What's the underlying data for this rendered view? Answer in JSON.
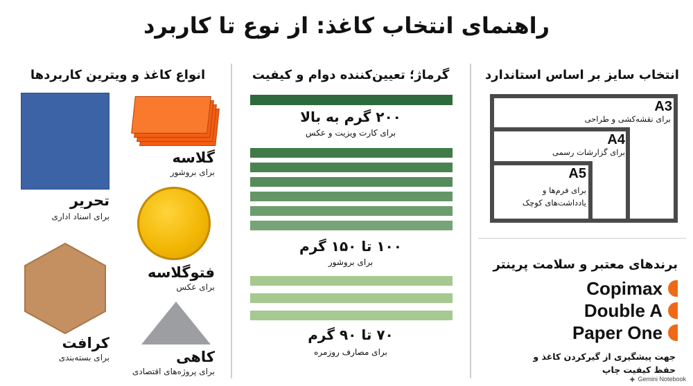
{
  "title": "راهنمای انتخاب کاغذ: از نوع تا کاربرد",
  "paper_types": {
    "heading": "انواع کاغذ و ویترین کاربردها",
    "items": [
      {
        "name": "گلاسه",
        "desc": "برای بروشور",
        "color": "#f25e14"
      },
      {
        "name": "تحریر",
        "desc": "برای اسناد اداری",
        "color": "#3b63a5"
      },
      {
        "name": "فتوگلاسه",
        "desc": "برای عکس",
        "color": "#f2b705"
      },
      {
        "name": "کرافت",
        "desc": "برای بسته‌بندی",
        "color": "#c49061"
      },
      {
        "name": "کاهی",
        "desc": "برای پروژه‌های اقتصادی",
        "color": "#9d9ea2"
      }
    ]
  },
  "weight": {
    "heading": "گرماژ؛ تعیین‌کننده دوام و کیفیت",
    "tiers": [
      {
        "label": "۲۰۰ گرم به بالا",
        "desc": "برای کارت ویزیت و عکس",
        "color": "#2e6b3c"
      },
      {
        "label": "۱۰۰ تا ۱۵۰ گرم",
        "desc": "برای بروشور",
        "color": "#5d9060"
      },
      {
        "label": "۷۰ تا ۹۰ گرم",
        "desc": "برای مصارف روزمره",
        "color": "#a6c98f"
      }
    ]
  },
  "sizes": {
    "heading": "انتخاب سایز بر اساس استاندارد",
    "items": [
      {
        "name": "A3",
        "desc": "برای نقشه‌کشی و طراحی"
      },
      {
        "name": "A4",
        "desc": "برای گزارشات رسمی"
      },
      {
        "name": "A5",
        "desc_line1": "برای فرم‌ها و",
        "desc_line2": "یادداشت‌های کوچک"
      }
    ]
  },
  "brands": {
    "heading": "برندهای معتبر و سلامت پرینتر",
    "items": [
      "Copimax",
      "Double A",
      "Paper One"
    ],
    "accent": "#ee6a17",
    "note_line1": "جهت پیشگیری از گیرکردن کاغذ و",
    "note_line2": "حفظ کیفیت چاپ"
  },
  "watermark": "Gemini Notebook"
}
